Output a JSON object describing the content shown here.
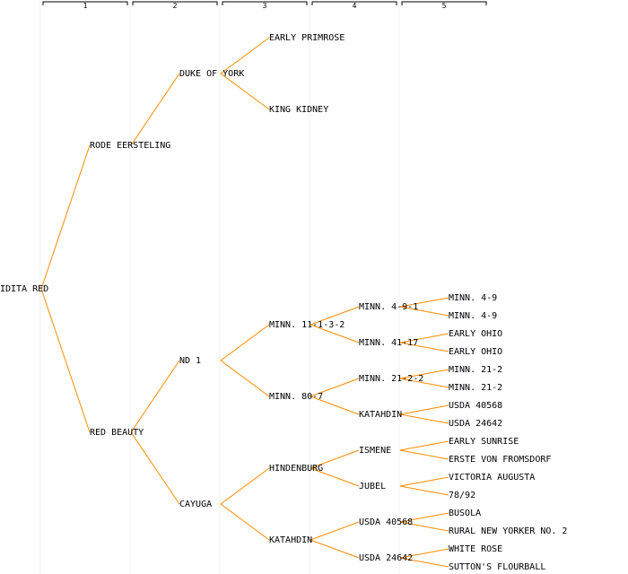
{
  "colors": {
    "edge": "#ff8c00",
    "text": "#000000",
    "guide": "#f0f0f0"
  },
  "generations": [
    "1",
    "2",
    "3",
    "4",
    "5"
  ],
  "nodes": [
    {
      "id": "n0",
      "label": "IDITA RED",
      "gen": 0,
      "row": 16,
      "parent": null
    },
    {
      "id": "n1",
      "label": "RODE EERSTELING",
      "gen": 1,
      "row": 8,
      "parent": "n0"
    },
    {
      "id": "n2",
      "label": "RED BEAUTY",
      "gen": 1,
      "row": 24,
      "parent": "n0"
    },
    {
      "id": "n3",
      "label": "DUKE OF YORK",
      "gen": 2,
      "row": 4,
      "parent": "n1"
    },
    {
      "id": "n4",
      "label": "ND 1",
      "gen": 2,
      "row": 20,
      "parent": "n2"
    },
    {
      "id": "n5",
      "label": "CAYUGA",
      "gen": 2,
      "row": 28,
      "parent": "n2"
    },
    {
      "id": "n6",
      "label": "EARLY PRIMROSE",
      "gen": 3,
      "row": 2,
      "parent": "n3"
    },
    {
      "id": "n7",
      "label": "KING KIDNEY",
      "gen": 3,
      "row": 6,
      "parent": "n3"
    },
    {
      "id": "n8",
      "label": "MINN. 11-1-3-2",
      "gen": 3,
      "row": 18,
      "parent": "n4"
    },
    {
      "id": "n9",
      "label": "MINN. 80-7",
      "gen": 3,
      "row": 22,
      "parent": "n4"
    },
    {
      "id": "n10",
      "label": "HINDENBURG",
      "gen": 3,
      "row": 26,
      "parent": "n5"
    },
    {
      "id": "n11",
      "label": "KATAHDIN",
      "gen": 3,
      "row": 30,
      "parent": "n5"
    },
    {
      "id": "n12",
      "label": "MINN. 4-9-1",
      "gen": 4,
      "row": 17,
      "parent": "n8"
    },
    {
      "id": "n13",
      "label": "MINN. 41-17",
      "gen": 4,
      "row": 19,
      "parent": "n8"
    },
    {
      "id": "n14",
      "label": "MINN. 21-2-2",
      "gen": 4,
      "row": 21,
      "parent": "n9"
    },
    {
      "id": "n15",
      "label": "KATAHDIN",
      "gen": 4,
      "row": 23,
      "parent": "n9"
    },
    {
      "id": "n16",
      "label": "ISMENE",
      "gen": 4,
      "row": 25,
      "parent": "n10"
    },
    {
      "id": "n17",
      "label": "JUBEL",
      "gen": 4,
      "row": 27,
      "parent": "n10"
    },
    {
      "id": "n18",
      "label": "USDA 40568",
      "gen": 4,
      "row": 29,
      "parent": "n11"
    },
    {
      "id": "n19",
      "label": "USDA 24642",
      "gen": 4,
      "row": 31,
      "parent": "n11"
    },
    {
      "id": "n20",
      "label": "MINN. 4-9",
      "gen": 5,
      "row": 16.5,
      "parent": "n12"
    },
    {
      "id": "n21",
      "label": "MINN. 4-9",
      "gen": 5,
      "row": 17.5,
      "parent": "n12"
    },
    {
      "id": "n22",
      "label": "EARLY OHIO",
      "gen": 5,
      "row": 18.5,
      "parent": "n13"
    },
    {
      "id": "n23",
      "label": "EARLY OHIO",
      "gen": 5,
      "row": 19.5,
      "parent": "n13"
    },
    {
      "id": "n24",
      "label": "MINN. 21-2",
      "gen": 5,
      "row": 20.5,
      "parent": "n14"
    },
    {
      "id": "n25",
      "label": "MINN. 21-2",
      "gen": 5,
      "row": 21.5,
      "parent": "n14"
    },
    {
      "id": "n26",
      "label": "USDA 40568",
      "gen": 5,
      "row": 22.5,
      "parent": "n15"
    },
    {
      "id": "n27",
      "label": "USDA 24642",
      "gen": 5,
      "row": 23.5,
      "parent": "n15"
    },
    {
      "id": "n28",
      "label": "EARLY SUNRISE",
      "gen": 5,
      "row": 24.5,
      "parent": "n16"
    },
    {
      "id": "n29",
      "label": "ERSTE VON FROMSDORF",
      "gen": 5,
      "row": 25.5,
      "parent": "n16"
    },
    {
      "id": "n30",
      "label": "VICTORIA AUGUSTA",
      "gen": 5,
      "row": 26.5,
      "parent": "n17"
    },
    {
      "id": "n31",
      "label": "78/92",
      "gen": 5,
      "row": 27.5,
      "parent": "n17"
    },
    {
      "id": "n32",
      "label": "BUSOLA",
      "gen": 5,
      "row": 28.5,
      "parent": "n18"
    },
    {
      "id": "n33",
      "label": "RURAL NEW YORKER NO. 2",
      "gen": 5,
      "row": 29.5,
      "parent": "n18"
    },
    {
      "id": "n34",
      "label": "WHITE ROSE",
      "gen": 5,
      "row": 30.5,
      "parent": "n19"
    },
    {
      "id": "n35",
      "label": "SUTTON'S FLOURBALL",
      "gen": 5,
      "row": 31.5,
      "parent": "n19"
    }
  ]
}
